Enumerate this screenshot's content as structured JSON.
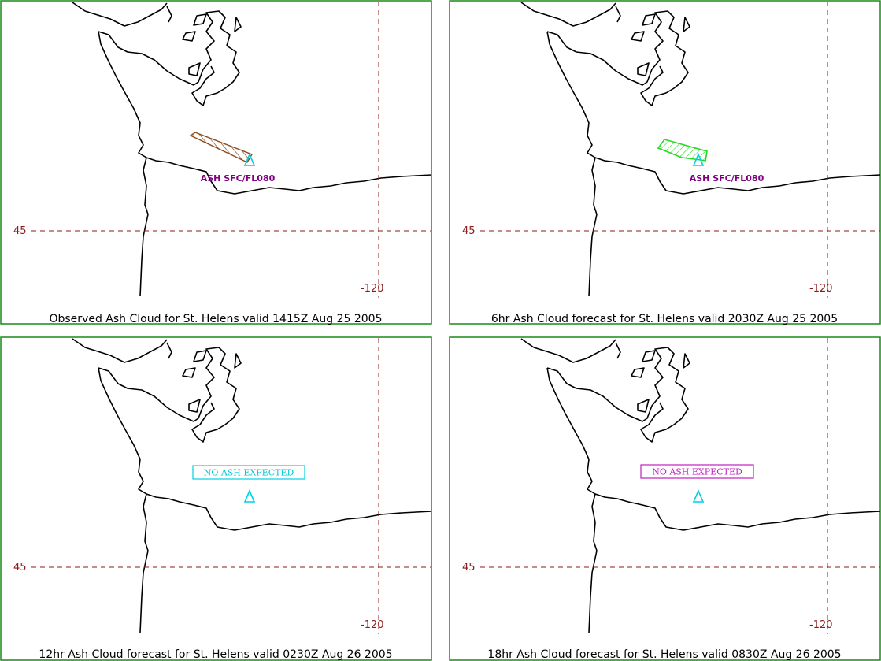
{
  "panels": [
    {
      "caption": "Observed Ash Cloud for St.  Helens valid 1415Z Aug 25 2005",
      "lat_label": "45",
      "lon_label": "-120",
      "annotation": "ASH SFC/FL080"
    },
    {
      "caption": "6hr Ash Cloud forecast for St.  Helens valid 2030Z Aug 25 2005",
      "lat_label": "45",
      "lon_label": "-120",
      "annotation": "ASH SFC/FL080"
    },
    {
      "caption": "12hr Ash Cloud forecast for St.  Helens valid 0230Z Aug 26 2005",
      "lat_label": "45",
      "lon_label": "-120",
      "annotation": "NO ASH EXPECTED"
    },
    {
      "caption": "18hr Ash Cloud forecast for St.  Helens valid 0830Z Aug 26 2005",
      "lat_label": "45",
      "lon_label": "-120",
      "annotation": "NO ASH EXPECTED"
    }
  ]
}
